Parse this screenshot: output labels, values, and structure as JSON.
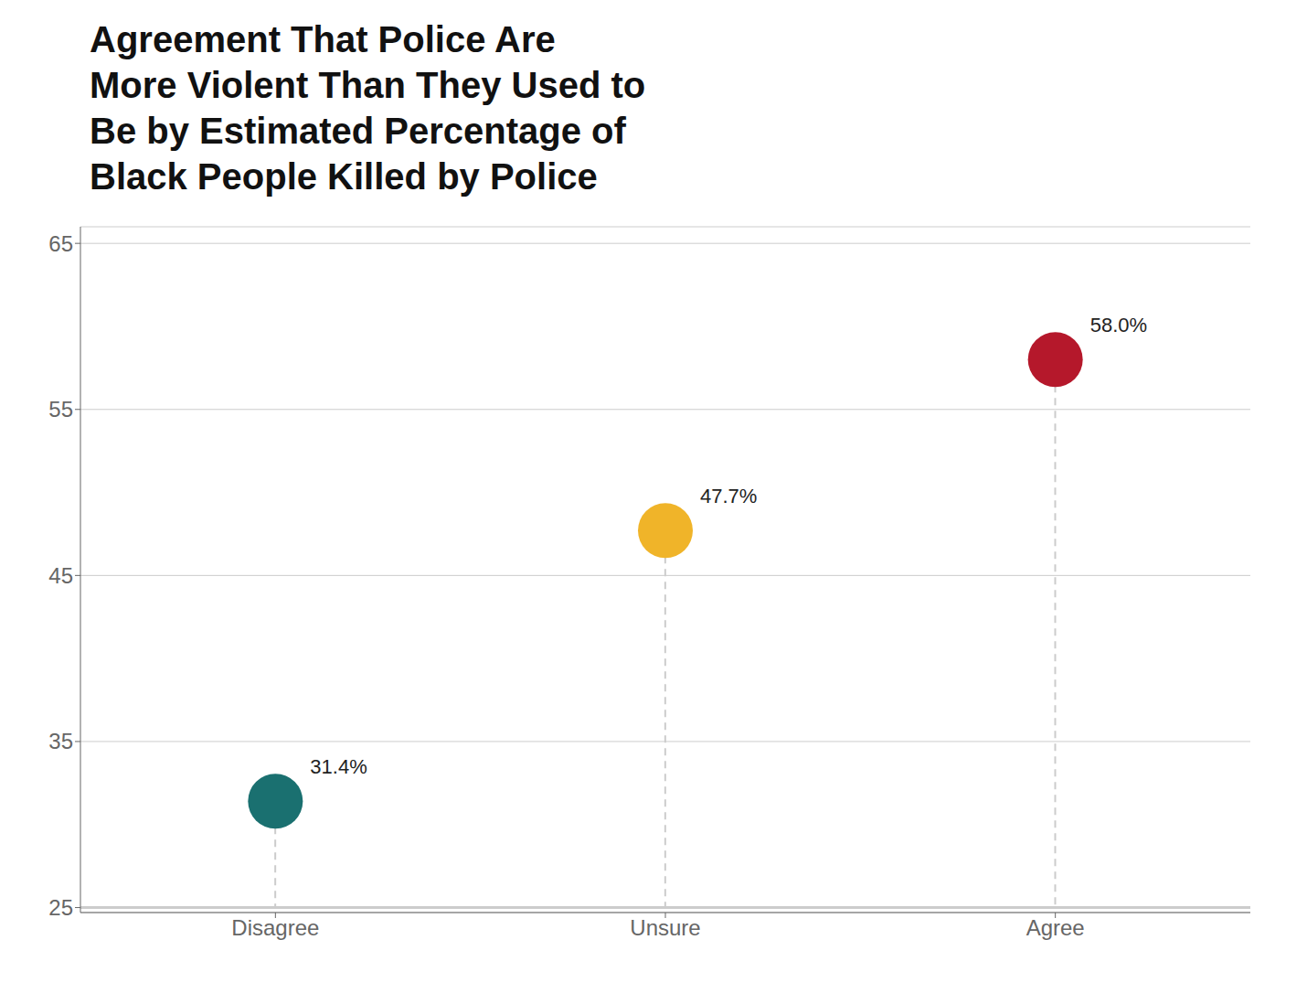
{
  "chart_data": {
    "type": "scatter",
    "title": "Agreement That Police Are\nMore Violent Than They Used to\nBe by Estimated Percentage of\nBlack People Killed by Police",
    "categories": [
      "Disagree",
      "Unsure",
      "Agree"
    ],
    "values": [
      31.4,
      47.7,
      58.0
    ],
    "value_labels": [
      "31.4%",
      "47.7%",
      "58.0%"
    ],
    "data_labels": true,
    "colors": [
      "#1a7070",
      "#f0b429",
      "#b5182b"
    ],
    "baseline": 25,
    "ylim": [
      24.7,
      66
    ],
    "yticks": [
      25,
      35,
      45,
      55,
      65
    ],
    "grid": true
  }
}
